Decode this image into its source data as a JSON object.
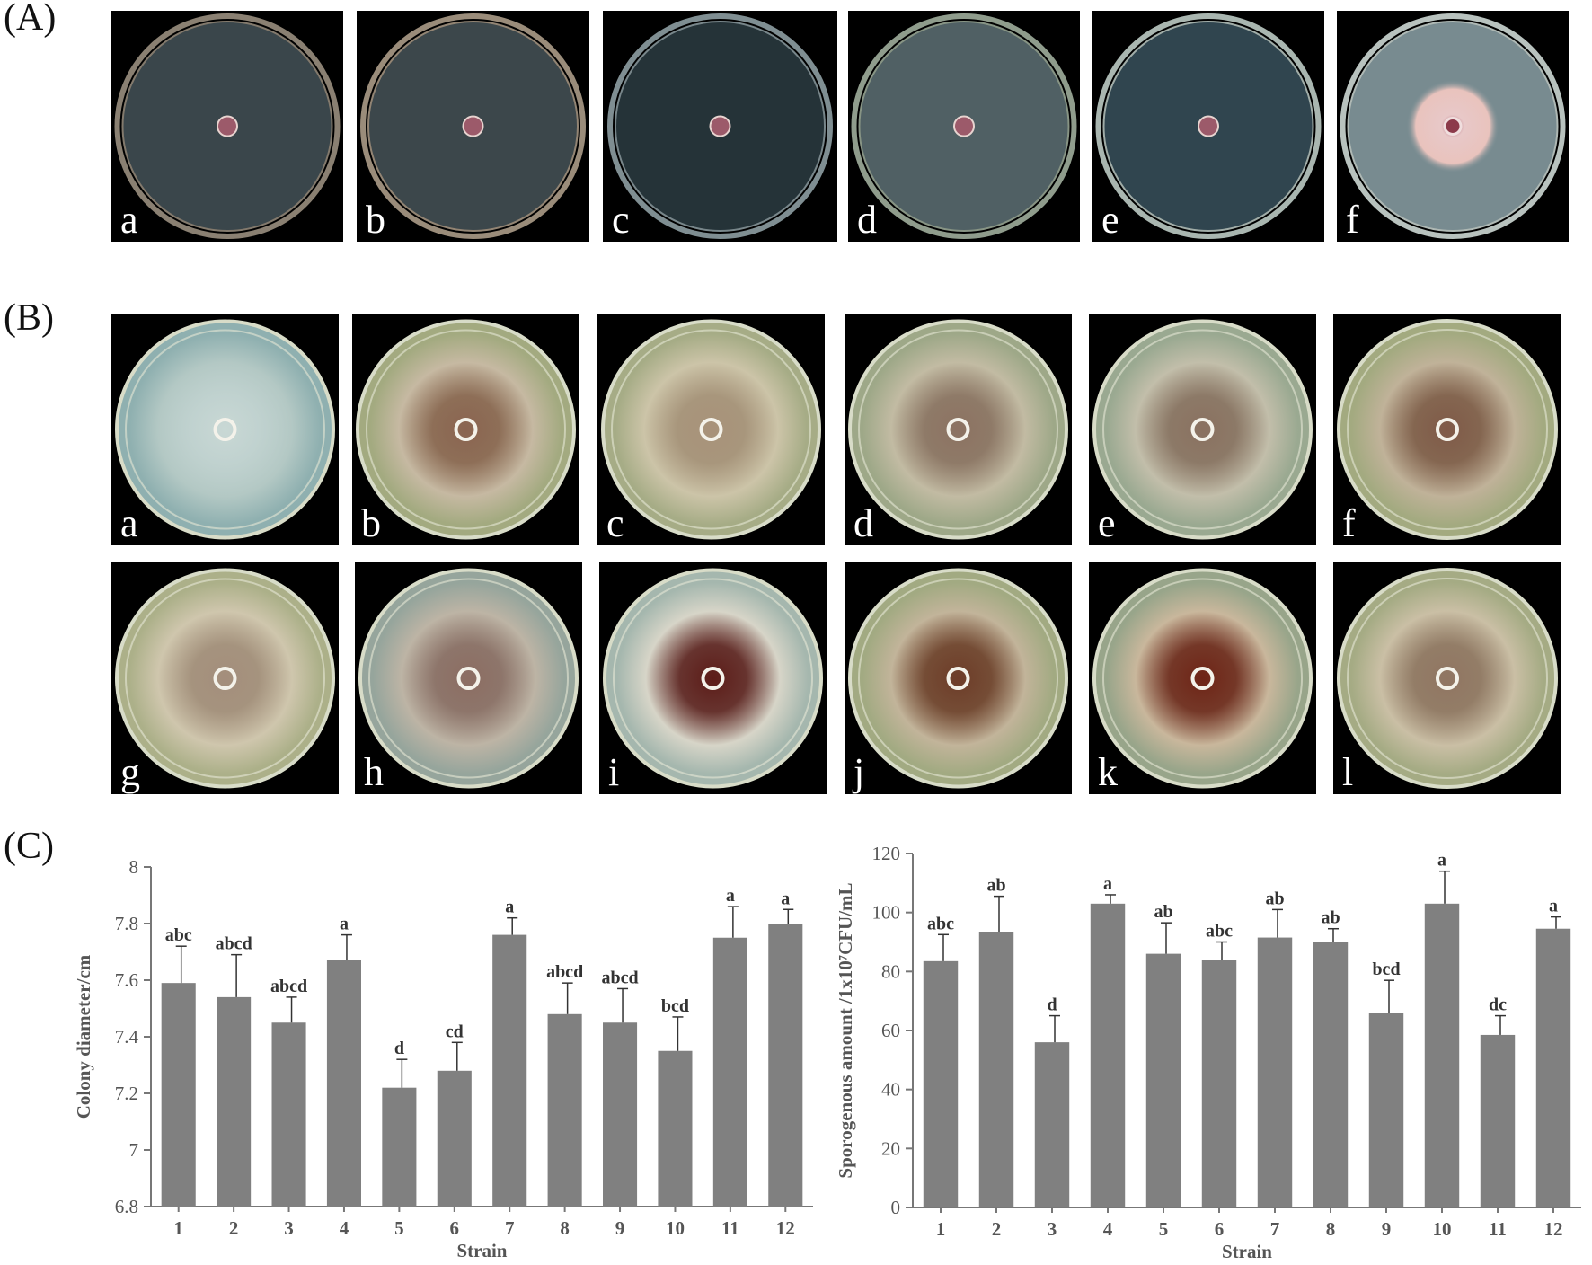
{
  "panels": {
    "A": {
      "label": "(A)",
      "plates": [
        "a",
        "b",
        "c",
        "d",
        "e",
        "f"
      ]
    },
    "B": {
      "label": "(B)",
      "plates": [
        "a",
        "b",
        "c",
        "d",
        "e",
        "f",
        "g",
        "h",
        "i",
        "j",
        "k",
        "l"
      ]
    },
    "C": {
      "label": "(C)"
    }
  },
  "plate_styles": {
    "A": [
      {
        "letter": "a",
        "agar": "#3e4a50",
        "rim": "#8a8072",
        "colony": "none"
      },
      {
        "letter": "b",
        "agar": "#404b50",
        "rim": "#9a8c7a",
        "colony": "none"
      },
      {
        "letter": "c",
        "agar": "#27363c",
        "rim": "#7f8e92",
        "colony": "none"
      },
      {
        "letter": "d",
        "agar": "#55666a",
        "rim": "#8f9c8c",
        "colony": "none"
      },
      {
        "letter": "e",
        "agar": "#334954",
        "rim": "#a9b6b0",
        "colony": "none"
      },
      {
        "letter": "f",
        "agar": "#7f9398",
        "rim": "#b8c2be",
        "colony": "pink"
      }
    ],
    "B": [
      {
        "letter": "a",
        "agar": "#8fb0b0",
        "colony": "#b3c8c4",
        "center": "#c9d8d5"
      },
      {
        "letter": "b",
        "agar": "#a3aa80",
        "colony": "#c6b9a2",
        "center": "#8a6450"
      },
      {
        "letter": "c",
        "agar": "#a6ac86",
        "colony": "#ccc4a8",
        "center": "#a8927a"
      },
      {
        "letter": "d",
        "agar": "#9ea888",
        "colony": "#c2bba3",
        "center": "#8c7262"
      },
      {
        "letter": "e",
        "agar": "#9aa991",
        "colony": "#c2beaa",
        "center": "#8a7160"
      },
      {
        "letter": "f",
        "agar": "#a3aa80",
        "colony": "#c0b299",
        "center": "#7f5a48"
      },
      {
        "letter": "g",
        "agar": "#acb089",
        "colony": "#cfc6ad",
        "center": "#a48e7c"
      },
      {
        "letter": "h",
        "agar": "#96a59c",
        "colony": "#bdb4a5",
        "center": "#8c6d62"
      },
      {
        "letter": "i",
        "agar": "#a5b7ae",
        "colony": "#d7d5c8",
        "center": "#5c1c18"
      },
      {
        "letter": "j",
        "agar": "#a2aa82",
        "colony": "#c2b49a",
        "center": "#6d3c28"
      },
      {
        "letter": "k",
        "agar": "#98a58a",
        "colony": "#c9b79c",
        "center": "#6e2416"
      },
      {
        "letter": "l",
        "agar": "#a5ab84",
        "colony": "#cabfa5",
        "center": "#907562"
      }
    ]
  },
  "chart_data": [
    {
      "type": "bar",
      "ylabel": "Colony diameter/cm",
      "xlabel": "Strain",
      "categories": [
        "1",
        "2",
        "3",
        "4",
        "5",
        "6",
        "7",
        "8",
        "9",
        "10",
        "11",
        "12"
      ],
      "values": [
        7.59,
        7.54,
        7.45,
        7.67,
        7.22,
        7.28,
        7.76,
        7.48,
        7.45,
        7.35,
        7.75,
        7.8
      ],
      "errors": [
        0.13,
        0.15,
        0.09,
        0.09,
        0.1,
        0.1,
        0.06,
        0.11,
        0.12,
        0.12,
        0.11,
        0.05
      ],
      "letters": [
        "abc",
        "abcd",
        "abcd",
        "a",
        "d",
        "cd",
        "a",
        "abcd",
        "abcd",
        "bcd",
        "a",
        "a"
      ],
      "ylim": [
        6.8,
        8.0
      ],
      "yticks": [
        "6.8",
        "7",
        "7.2",
        "7.4",
        "7.6",
        "7.8",
        "8"
      ],
      "bar_color": "#808080",
      "grid": false
    },
    {
      "type": "bar",
      "ylabel": "Sporogenous amount /1x10⁷CFU/mL",
      "xlabel": "Strain",
      "categories": [
        "1",
        "2",
        "3",
        "4",
        "5",
        "6",
        "7",
        "8",
        "9",
        "10",
        "11",
        "12"
      ],
      "values": [
        83.5,
        93.5,
        56,
        103,
        86,
        84,
        91.5,
        90,
        66,
        103,
        58.5,
        94.5
      ],
      "errors": [
        9,
        12,
        9,
        3,
        10.5,
        6,
        9.5,
        4.5,
        11,
        11,
        6.5,
        4
      ],
      "letters": [
        "abc",
        "ab",
        "d",
        "a",
        "ab",
        "abc",
        "ab",
        "ab",
        "bcd",
        "a",
        "dc",
        "a"
      ],
      "ylim": [
        0,
        120
      ],
      "yticks": [
        "0",
        "20",
        "40",
        "60",
        "80",
        "100",
        "120"
      ],
      "bar_color": "#808080",
      "grid": false
    }
  ]
}
